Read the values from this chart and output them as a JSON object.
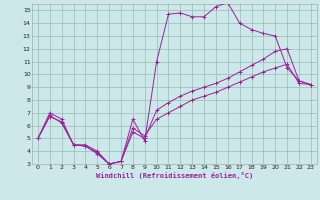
{
  "xlabel": "Windchill (Refroidissement éolien,°C)",
  "xlim": [
    -0.5,
    23.5
  ],
  "ylim": [
    3,
    15.5
  ],
  "xticks": [
    0,
    1,
    2,
    3,
    4,
    5,
    6,
    7,
    8,
    9,
    10,
    11,
    12,
    13,
    14,
    15,
    16,
    17,
    18,
    19,
    20,
    21,
    22,
    23
  ],
  "yticks": [
    3,
    4,
    5,
    6,
    7,
    8,
    9,
    10,
    11,
    12,
    13,
    14,
    15
  ],
  "bg_color": "#cce8e8",
  "line_color": "#992299",
  "grid_color": "#99bbbb",
  "curve1_x": [
    0,
    1,
    2,
    3,
    4,
    5,
    6,
    7,
    8,
    9,
    10,
    11,
    12,
    13,
    14,
    15,
    16,
    17,
    18,
    19,
    20,
    21,
    22,
    23
  ],
  "curve1_y": [
    5.0,
    7.0,
    6.5,
    4.5,
    4.5,
    4.0,
    3.0,
    3.2,
    6.5,
    4.8,
    11.0,
    14.7,
    14.8,
    14.5,
    14.5,
    15.3,
    15.6,
    14.0,
    13.5,
    13.2,
    13.0,
    10.5,
    9.5,
    9.2
  ],
  "curve2_x": [
    0,
    1,
    2,
    3,
    4,
    5,
    6,
    7,
    8,
    9,
    10,
    11,
    12,
    13,
    14,
    15,
    16,
    17,
    18,
    19,
    20,
    21,
    22,
    23
  ],
  "curve2_y": [
    5.0,
    6.8,
    6.2,
    4.5,
    4.4,
    3.8,
    3.0,
    3.2,
    5.5,
    5.0,
    7.2,
    7.8,
    8.3,
    8.7,
    9.0,
    9.3,
    9.7,
    10.2,
    10.7,
    11.2,
    11.8,
    12.0,
    9.5,
    9.2
  ],
  "curve3_x": [
    0,
    1,
    2,
    3,
    4,
    5,
    6,
    7,
    8,
    9,
    10,
    11,
    12,
    13,
    14,
    15,
    16,
    17,
    18,
    19,
    20,
    21,
    22,
    23
  ],
  "curve3_y": [
    5.0,
    6.7,
    6.3,
    4.5,
    4.4,
    3.9,
    3.0,
    3.2,
    5.8,
    5.2,
    6.5,
    7.0,
    7.5,
    8.0,
    8.3,
    8.6,
    9.0,
    9.4,
    9.8,
    10.2,
    10.5,
    10.8,
    9.3,
    9.2
  ]
}
